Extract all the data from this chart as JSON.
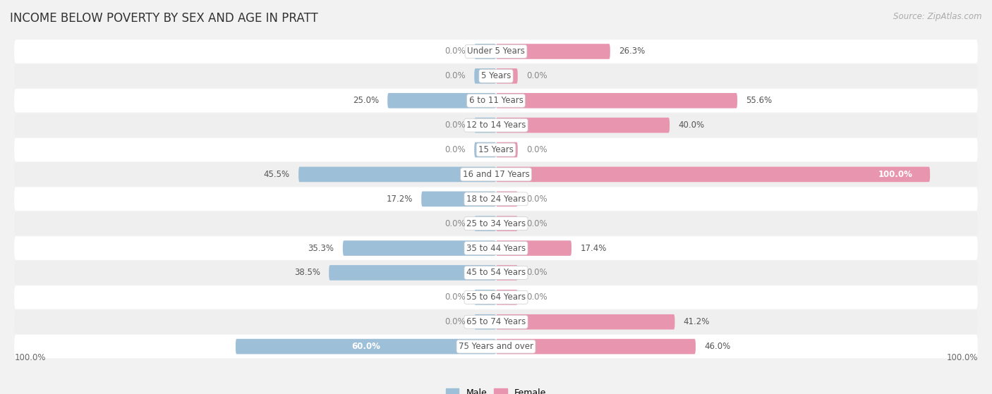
{
  "title": "INCOME BELOW POVERTY BY SEX AND AGE IN PRATT",
  "source": "Source: ZipAtlas.com",
  "categories": [
    "Under 5 Years",
    "5 Years",
    "6 to 11 Years",
    "12 to 14 Years",
    "15 Years",
    "16 and 17 Years",
    "18 to 24 Years",
    "25 to 34 Years",
    "35 to 44 Years",
    "45 to 54 Years",
    "55 to 64 Years",
    "65 to 74 Years",
    "75 Years and over"
  ],
  "male": [
    0.0,
    0.0,
    25.0,
    0.0,
    0.0,
    45.5,
    17.2,
    0.0,
    35.3,
    38.5,
    0.0,
    0.0,
    60.0
  ],
  "female": [
    26.3,
    0.0,
    55.6,
    40.0,
    0.0,
    100.0,
    0.0,
    0.0,
    17.4,
    0.0,
    0.0,
    41.2,
    46.0
  ],
  "male_color": "#9dbfd8",
  "female_color": "#e896b0",
  "bg_color": "#f2f2f2",
  "row_bg": "#ffffff",
  "row_alt_bg": "#efefef",
  "max_val": 100.0,
  "bar_height": 0.62,
  "title_fontsize": 12,
  "label_fontsize": 8.5,
  "source_fontsize": 8.5,
  "legend_fontsize": 9,
  "stub_size": 5.0
}
